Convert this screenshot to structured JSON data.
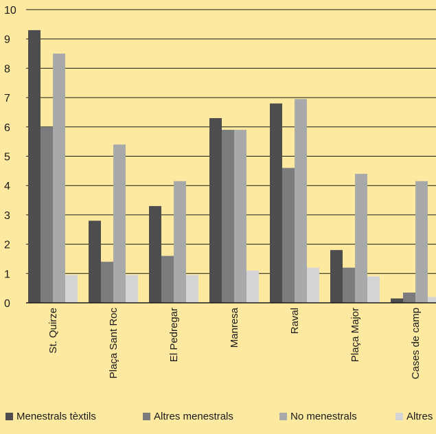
{
  "chart_data": {
    "type": "bar",
    "categories": [
      "St. Quirze",
      "Plaça Sant Roc",
      "El Pedregar",
      "Manresa",
      "Raval",
      "Plaça Major",
      "Cases de camp"
    ],
    "series": [
      {
        "name": "Menestrals tèxtils",
        "color": "#4d4d4f",
        "values": [
          9.3,
          2.8,
          3.3,
          6.3,
          6.8,
          1.8,
          0.15
        ]
      },
      {
        "name": "Altres menestrals",
        "color": "#7a7b7d",
        "values": [
          6.0,
          1.4,
          1.6,
          5.9,
          4.6,
          1.2,
          0.35
        ]
      },
      {
        "name": "No menestrals",
        "color": "#a8a9ab",
        "values": [
          8.5,
          5.4,
          4.15,
          5.9,
          6.95,
          4.4,
          4.15
        ]
      },
      {
        "name": "Altres",
        "color": "#d3d4d6",
        "values": [
          0.95,
          0.95,
          0.95,
          1.1,
          1.2,
          0.9,
          0.2
        ]
      }
    ],
    "yticks": [
      "0",
      "1",
      "2",
      "3",
      "4",
      "5",
      "6",
      "7",
      "8",
      "9",
      "10"
    ],
    "ylim": [
      0,
      10
    ],
    "grid": true,
    "legend_position": "bottom"
  }
}
